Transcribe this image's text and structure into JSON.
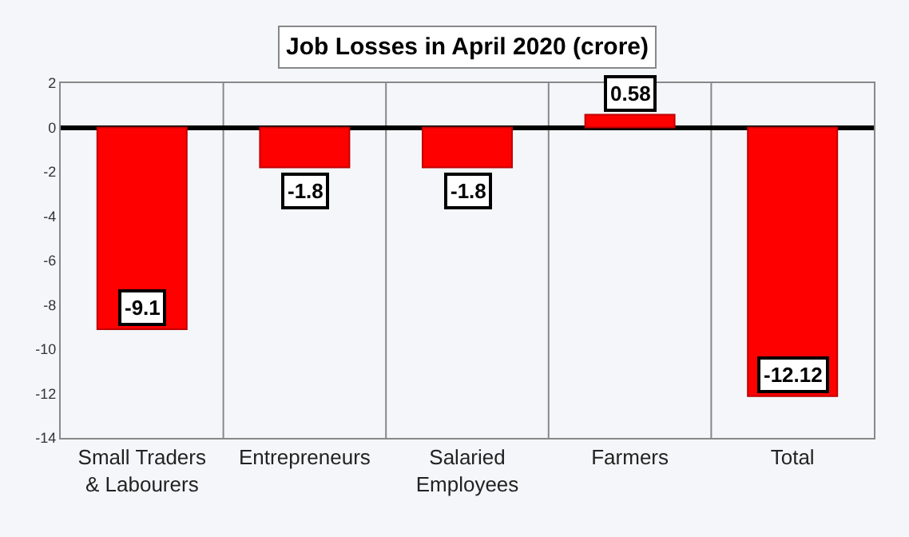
{
  "chart_data": {
    "type": "bar",
    "title": "Job Losses in April 2020 (crore)",
    "categories": [
      "Small Traders\n& Labourers",
      "Entrepreneurs",
      "Salaried\nEmployees",
      "Farmers",
      "Total"
    ],
    "values": [
      -9.1,
      -1.8,
      -1.8,
      0.58,
      -12.12
    ],
    "colors": [
      "#ff0000",
      "#ff0000",
      "#ff0000",
      "#ff0000",
      "#ff0000"
    ],
    "ylim": [
      -14,
      2
    ],
    "yticks": [
      -14,
      -12,
      -10,
      -8,
      -6,
      -4,
      -2,
      0,
      2
    ],
    "grid": "x",
    "data_labels": true
  }
}
